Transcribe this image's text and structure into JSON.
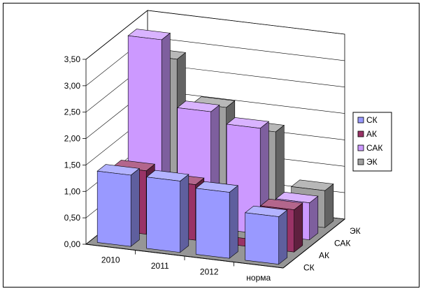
{
  "chart_data": {
    "type": "bar",
    "subtype": "3d-clustered-column",
    "title": "",
    "xlabel": "",
    "ylabel": "",
    "categories": [
      "2010",
      "2011",
      "2012",
      "норма"
    ],
    "depth_labels": [
      "СК",
      "АК",
      "САК",
      "ЭК"
    ],
    "y_tick_labels": [
      "0,00",
      "0,50",
      "1,00",
      "1,50",
      "2,00",
      "2,50",
      "3,00",
      "3,50"
    ],
    "ylim": [
      0,
      3.5
    ],
    "grid": true,
    "legend": "right",
    "series": [
      {
        "name": "СК",
        "color": "#9999ff",
        "values": [
          1.35,
          1.35,
          1.25,
          0.9
        ]
      },
      {
        "name": "АК",
        "color": "#993366",
        "values": [
          1.2,
          1.05,
          0.0,
          0.8
        ]
      },
      {
        "name": "САК",
        "color": "#cc99ff",
        "values": [
          3.45,
          2.2,
          2.0,
          0.7
        ]
      },
      {
        "name": "ЭК",
        "color": "#a0a0a0",
        "values": [
          2.85,
          2.05,
          1.7,
          0.7
        ]
      }
    ]
  }
}
